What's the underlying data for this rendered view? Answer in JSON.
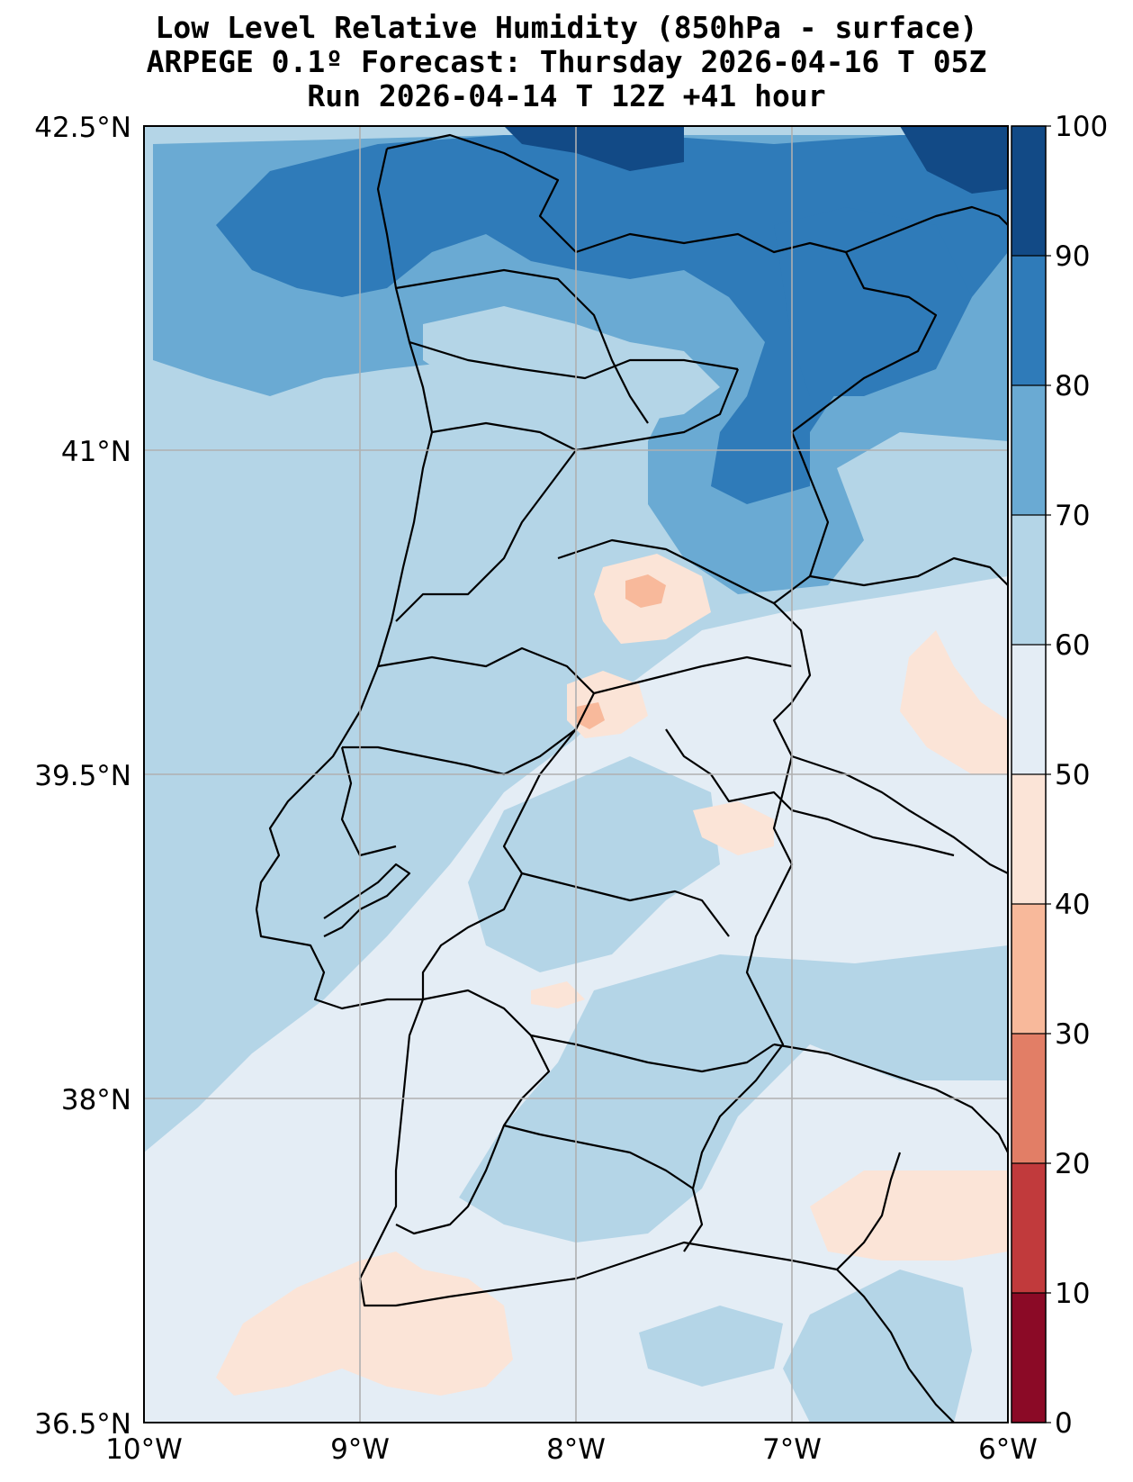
{
  "title": {
    "line1": "Low Level Relative Humidity (850hPa - surface)",
    "line2": "ARPEGE 0.1º Forecast: Thursday 2026-04-16 T 05Z",
    "line3": "Run 2026-04-14 T 12Z +41 hour"
  },
  "map": {
    "lon_range": [
      -10,
      -6
    ],
    "lat_range": [
      36.5,
      42.5
    ],
    "x_ticks": [
      "10°W",
      "9°W",
      "8°W",
      "7°W",
      "6°W"
    ],
    "y_ticks": [
      "42.5°N",
      "41°N",
      "39.5°N",
      "38°N",
      "36.5°N"
    ],
    "gridlines": true,
    "region": "Portugal and western Spain"
  },
  "colorbar": {
    "levels": [
      0,
      10,
      20,
      30,
      40,
      50,
      60,
      70,
      80,
      90,
      100
    ],
    "labels": [
      "0",
      "10",
      "20",
      "30",
      "40",
      "50",
      "60",
      "70",
      "80",
      "90",
      "100"
    ],
    "colors": [
      "#8b0a26",
      "#c13a3c",
      "#e27e66",
      "#f8b99b",
      "#fbe4d7",
      "#e4edf5",
      "#b4d5e7",
      "#6aaad3",
      "#2f7bb9",
      "#124a86"
    ]
  }
}
